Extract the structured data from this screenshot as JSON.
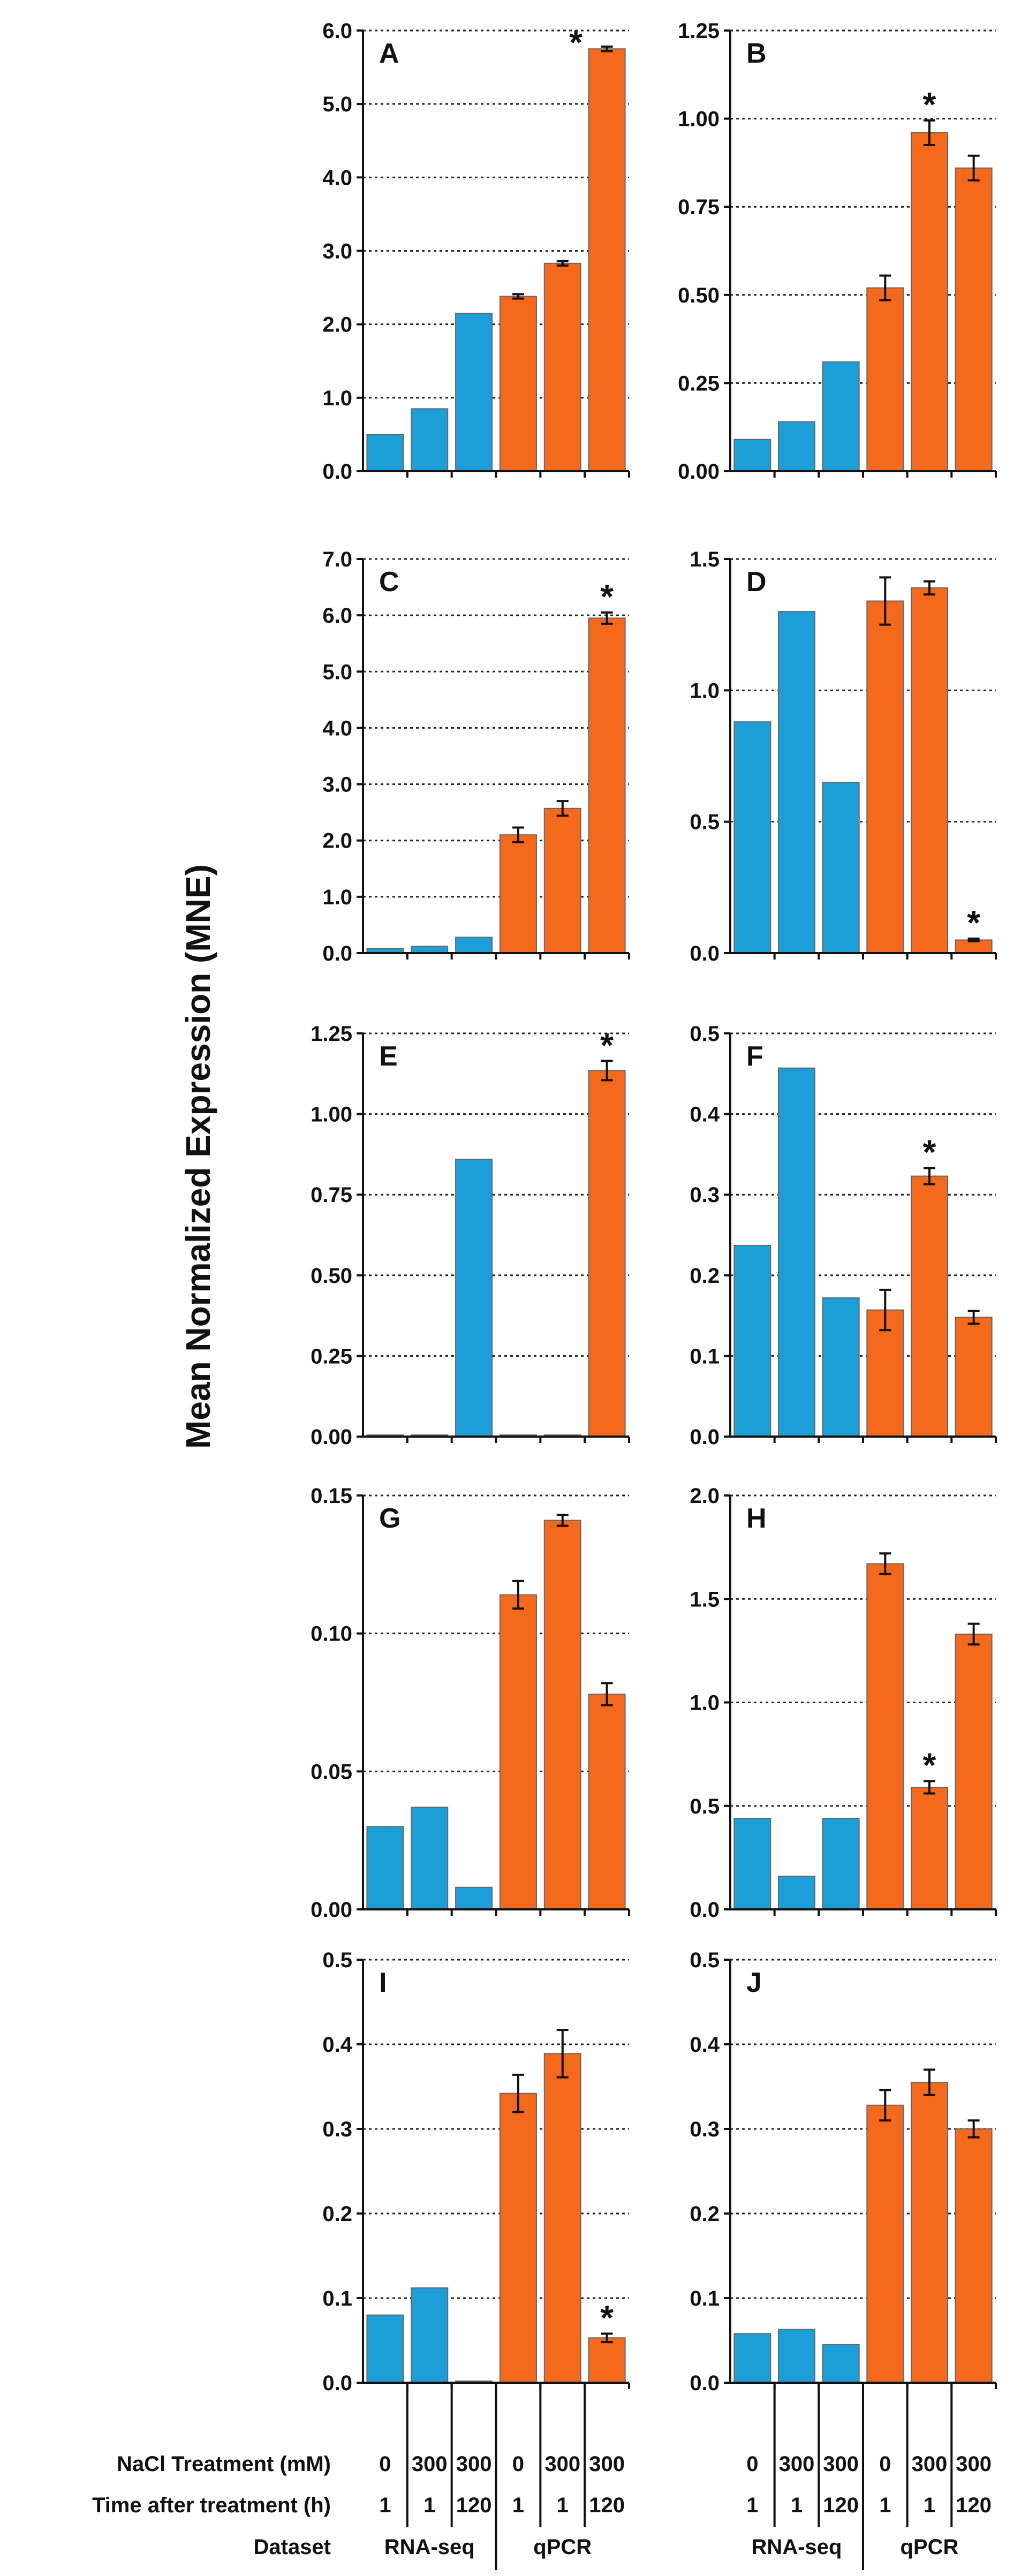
{
  "y_axis_label": "Mean Normalized Expression (MNE)",
  "colors": {
    "rnaseq": "#1c9fd8",
    "qpcr": "#f4691c",
    "outline": "#666666"
  },
  "conditions": {
    "nacl_label": "NaCl Treatment (mM)",
    "time_label": "Time after treatment (h)",
    "dataset_label": "Dataset",
    "nacl": [
      "0",
      "300",
      "300",
      "0",
      "300",
      "300"
    ],
    "time": [
      "1",
      "1",
      "120",
      "1",
      "1",
      "120"
    ],
    "datasets": [
      "RNA-seq",
      "qPCR"
    ]
  },
  "chart_data": [
    {
      "type": "bar",
      "panel": "A",
      "ylim": [
        0,
        6.0
      ],
      "yticks": [
        "0.0",
        "1.0",
        "2.0",
        "3.0",
        "4.0",
        "5.0",
        "6.0"
      ],
      "categories": [
        "0 mM 1 h RNA-seq",
        "300 mM 1 h RNA-seq",
        "300 mM 120 h RNA-seq",
        "0 mM 1 h qPCR",
        "300 mM 1 h qPCR",
        "300 mM 120 h qPCR"
      ],
      "series": [
        {
          "name": "RNA-seq",
          "values": [
            0.5,
            0.85,
            2.15,
            null,
            null,
            null
          ]
        },
        {
          "name": "qPCR",
          "values": [
            null,
            null,
            null,
            2.38,
            2.83,
            5.75
          ],
          "errors": [
            null,
            null,
            null,
            0.03,
            0.03,
            0.03
          ]
        }
      ],
      "significant": [
        5
      ]
    },
    {
      "type": "bar",
      "panel": "B",
      "ylim": [
        0,
        1.25
      ],
      "yticks": [
        "0.00",
        "0.25",
        "0.50",
        "0.75",
        "1.00",
        "1.25"
      ],
      "categories": [
        "0 mM 1 h RNA-seq",
        "300 mM 1 h RNA-seq",
        "300 mM 120 h RNA-seq",
        "0 mM 1 h qPCR",
        "300 mM 1 h qPCR",
        "300 mM 120 h qPCR"
      ],
      "series": [
        {
          "name": "RNA-seq",
          "values": [
            0.09,
            0.14,
            0.31,
            null,
            null,
            null
          ]
        },
        {
          "name": "qPCR",
          "values": [
            null,
            null,
            null,
            0.52,
            0.96,
            0.86
          ],
          "errors": [
            null,
            null,
            null,
            0.035,
            0.035,
            0.035
          ]
        }
      ],
      "significant": [
        4
      ]
    },
    {
      "type": "bar",
      "panel": "C",
      "ylim": [
        0,
        7.0
      ],
      "yticks": [
        "0.0",
        "1.0",
        "2.0",
        "3.0",
        "4.0",
        "5.0",
        "6.0",
        "7.0"
      ],
      "categories": [
        "0 mM 1 h RNA-seq",
        "300 mM 1 h RNA-seq",
        "300 mM 120 h RNA-seq",
        "0 mM 1 h qPCR",
        "300 mM 1 h qPCR",
        "300 mM 120 h qPCR"
      ],
      "series": [
        {
          "name": "RNA-seq",
          "values": [
            0.08,
            0.12,
            0.28,
            null,
            null,
            null
          ]
        },
        {
          "name": "qPCR",
          "values": [
            null,
            null,
            null,
            2.1,
            2.57,
            5.95
          ],
          "errors": [
            null,
            null,
            null,
            0.13,
            0.13,
            0.1
          ]
        }
      ],
      "significant": [
        5
      ]
    },
    {
      "type": "bar",
      "panel": "D",
      "ylim": [
        0,
        1.5
      ],
      "yticks": [
        "0.0",
        "0.5",
        "1.0",
        "1.5"
      ],
      "categories": [
        "0 mM 1 h RNA-seq",
        "300 mM 1 h RNA-seq",
        "300 mM 120 h RNA-seq",
        "0 mM 1 h qPCR",
        "300 mM 1 h qPCR",
        "300 mM 120 h qPCR"
      ],
      "series": [
        {
          "name": "RNA-seq",
          "values": [
            0.88,
            1.3,
            0.65,
            null,
            null,
            null
          ]
        },
        {
          "name": "qPCR",
          "values": [
            null,
            null,
            null,
            1.34,
            1.39,
            0.05
          ],
          "errors": [
            null,
            null,
            null,
            0.09,
            0.025,
            0.005
          ]
        }
      ],
      "significant": [
        5
      ]
    },
    {
      "type": "bar",
      "panel": "E",
      "ylim": [
        0,
        1.25
      ],
      "yticks": [
        "0.00",
        "0.25",
        "0.50",
        "0.75",
        "1.00",
        "1.25"
      ],
      "categories": [
        "0 mM 1 h RNA-seq",
        "300 mM 1 h RNA-seq",
        "300 mM 120 h RNA-seq",
        "0 mM 1 h qPCR",
        "300 mM 1 h qPCR",
        "300 mM 120 h qPCR"
      ],
      "series": [
        {
          "name": "RNA-seq",
          "values": [
            0.005,
            0.005,
            0.86,
            null,
            null,
            null
          ]
        },
        {
          "name": "qPCR",
          "values": [
            null,
            null,
            null,
            0.005,
            0.005,
            1.135
          ],
          "errors": [
            null,
            null,
            null,
            null,
            null,
            0.03
          ]
        }
      ],
      "significant": [
        5
      ]
    },
    {
      "type": "bar",
      "panel": "F",
      "ylim": [
        0,
        0.5
      ],
      "yticks": [
        "0.0",
        "0.1",
        "0.2",
        "0.3",
        "0.4",
        "0.5"
      ],
      "categories": [
        "0 mM 1 h RNA-seq",
        "300 mM 1 h RNA-seq",
        "300 mM 120 h RNA-seq",
        "0 mM 1 h qPCR",
        "300 mM 1 h qPCR",
        "300 mM 120 h qPCR"
      ],
      "series": [
        {
          "name": "RNA-seq",
          "values": [
            0.237,
            0.457,
            0.172,
            null,
            null,
            null
          ]
        },
        {
          "name": "qPCR",
          "values": [
            null,
            null,
            null,
            0.157,
            0.323,
            0.148
          ],
          "errors": [
            null,
            null,
            null,
            0.025,
            0.01,
            0.008
          ]
        }
      ],
      "significant": [
        4
      ]
    },
    {
      "type": "bar",
      "panel": "G",
      "ylim": [
        0,
        0.15
      ],
      "yticks": [
        "0.00",
        "0.05",
        "0.10",
        "0.15"
      ],
      "categories": [
        "0 mM 1 h RNA-seq",
        "300 mM 1 h RNA-seq",
        "300 mM 120 h RNA-seq",
        "0 mM 1 h qPCR",
        "300 mM 1 h qPCR",
        "300 mM 120 h qPCR"
      ],
      "series": [
        {
          "name": "RNA-seq",
          "values": [
            0.03,
            0.037,
            0.008,
            null,
            null,
            null
          ]
        },
        {
          "name": "qPCR",
          "values": [
            null,
            null,
            null,
            0.114,
            0.141,
            0.078
          ],
          "errors": [
            null,
            null,
            null,
            0.005,
            0.002,
            0.004
          ]
        }
      ],
      "significant": []
    },
    {
      "type": "bar",
      "panel": "H",
      "ylim": [
        0,
        2.0
      ],
      "yticks": [
        "0.0",
        "0.5",
        "1.0",
        "1.5",
        "2.0"
      ],
      "categories": [
        "0 mM 1 h RNA-seq",
        "300 mM 1 h RNA-seq",
        "300 mM 120 h RNA-seq",
        "0 mM 1 h qPCR",
        "300 mM 1 h qPCR",
        "300 mM 120 h qPCR"
      ],
      "series": [
        {
          "name": "RNA-seq",
          "values": [
            0.44,
            0.16,
            0.44,
            null,
            null,
            null
          ]
        },
        {
          "name": "qPCR",
          "values": [
            null,
            null,
            null,
            1.67,
            0.59,
            1.33
          ],
          "errors": [
            null,
            null,
            null,
            0.05,
            0.03,
            0.05
          ]
        }
      ],
      "significant": [
        4
      ]
    },
    {
      "type": "bar",
      "panel": "I",
      "ylim": [
        0,
        0.5
      ],
      "yticks": [
        "0.0",
        "0.1",
        "0.2",
        "0.3",
        "0.4",
        "0.5"
      ],
      "categories": [
        "0 mM 1 h RNA-seq",
        "300 mM 1 h RNA-seq",
        "300 mM 120 h RNA-seq",
        "0 mM 1 h qPCR",
        "300 mM 1 h qPCR",
        "300 mM 120 h qPCR"
      ],
      "series": [
        {
          "name": "RNA-seq",
          "values": [
            0.08,
            0.112,
            0.002,
            null,
            null,
            null
          ]
        },
        {
          "name": "qPCR",
          "values": [
            null,
            null,
            null,
            0.342,
            0.389,
            0.053
          ],
          "errors": [
            null,
            null,
            null,
            0.022,
            0.028,
            0.005
          ]
        }
      ],
      "significant": [
        5
      ]
    },
    {
      "type": "bar",
      "panel": "J",
      "ylim": [
        0,
        0.5
      ],
      "yticks": [
        "0.0",
        "0.1",
        "0.2",
        "0.3",
        "0.4",
        "0.5"
      ],
      "categories": [
        "0 mM 1 h RNA-seq",
        "300 mM 1 h RNA-seq",
        "300 mM 120 h RNA-seq",
        "0 mM 1 h qPCR",
        "300 mM 1 h qPCR",
        "300 mM 120 h qPCR"
      ],
      "series": [
        {
          "name": "RNA-seq",
          "values": [
            0.058,
            0.063,
            0.045,
            null,
            null,
            null
          ]
        },
        {
          "name": "qPCR",
          "values": [
            null,
            null,
            null,
            0.328,
            0.355,
            0.3
          ],
          "errors": [
            null,
            null,
            null,
            0.018,
            0.015,
            0.01
          ]
        }
      ],
      "significant": []
    }
  ]
}
